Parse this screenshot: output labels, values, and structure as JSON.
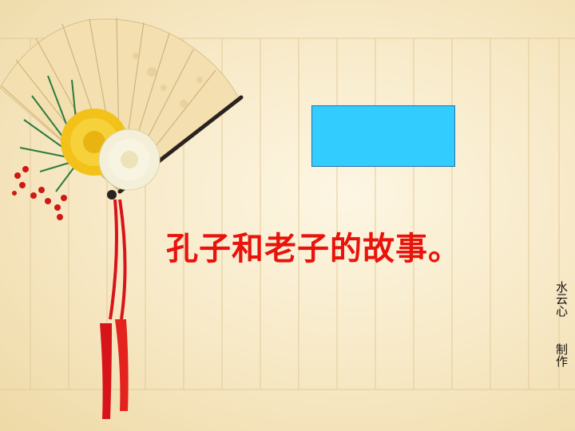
{
  "slide": {
    "title": "孔子和老子的故事。",
    "author_line1": "水云心",
    "author_line2": "制作"
  },
  "colors": {
    "background": "#f7e8c4",
    "title": "#e8140c",
    "box": "#33ccff",
    "box_border": "#2a6fa8",
    "tassel": "#d7141a",
    "flower_yellow": "#f2c21a",
    "flower_white": "#f3efd8"
  },
  "decorations": [
    "folding-fan",
    "pine-sprig",
    "chrysanthemum-yellow",
    "chrysanthemum-white",
    "red-berries",
    "red-tassel"
  ]
}
